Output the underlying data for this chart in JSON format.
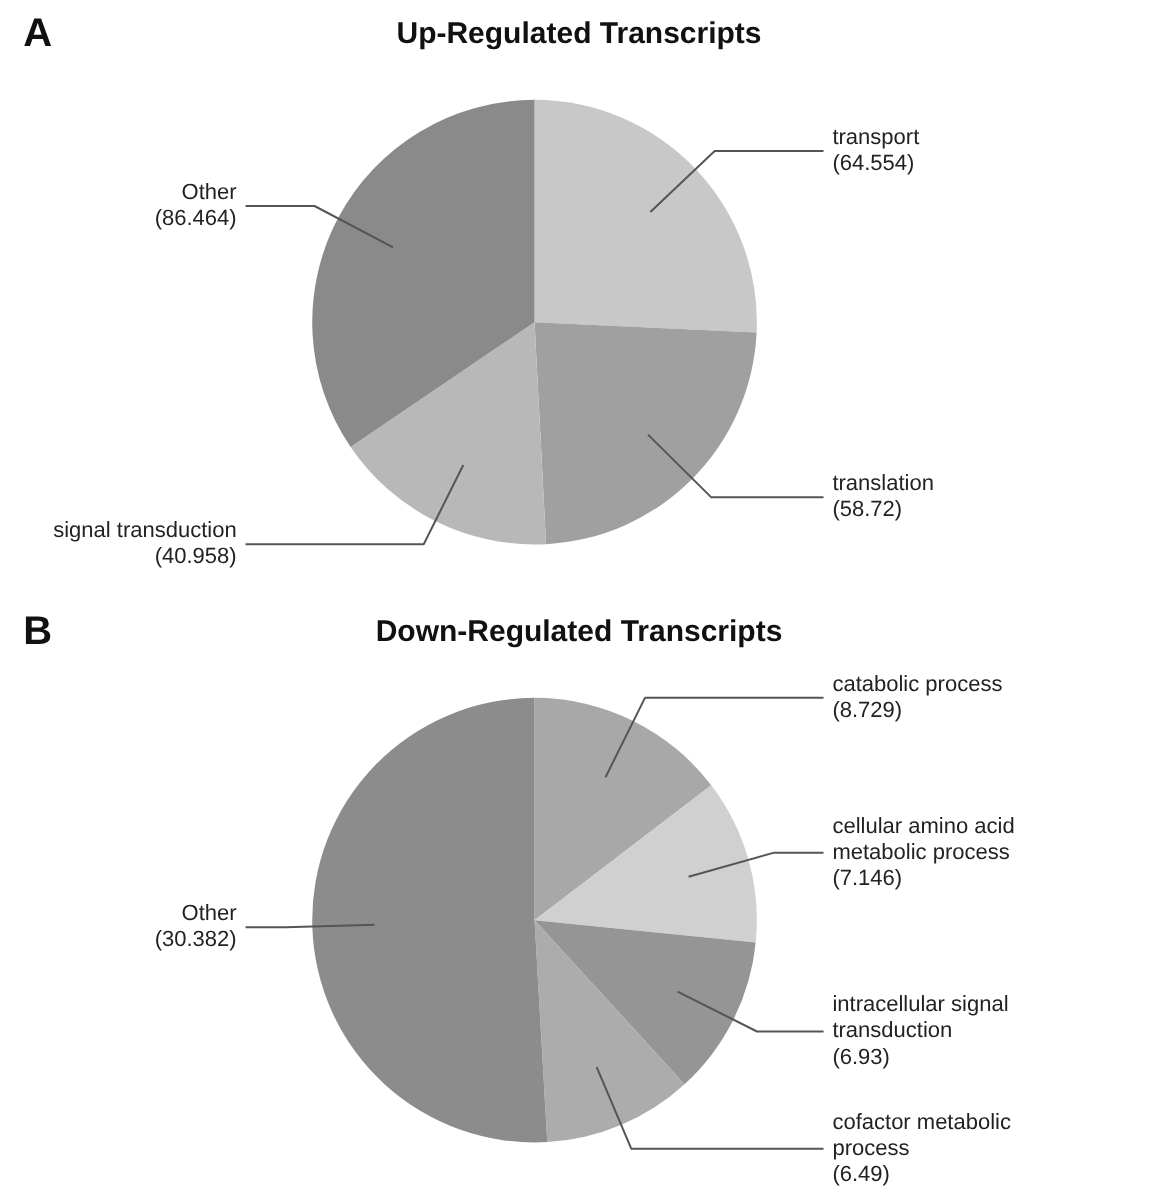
{
  "chart_data": [
    {
      "type": "pie",
      "title": "Up-Regulated Transcripts",
      "annotations": [
        "A"
      ],
      "categories": [
        "transport",
        "translation",
        "signal transduction",
        "Other"
      ],
      "values": [
        64.554,
        58.72,
        40.958,
        86.464
      ],
      "value_labels": [
        "(64.554)",
        "(58.72)",
        "(40.958)",
        "(86.464)"
      ],
      "colors": [
        "#c8c8c8",
        "#a0a0a0",
        "#b8b8b8",
        "#8a8a8a"
      ]
    },
    {
      "type": "pie",
      "title": "Down-Regulated Transcripts",
      "annotations": [
        "B"
      ],
      "categories": [
        "catabolic process",
        "cellular amino acid metabolic process",
        "intracellular signal transduction",
        "cofactor metabolic process",
        "Other"
      ],
      "values": [
        8.729,
        7.146,
        6.93,
        6.49,
        30.382
      ],
      "value_labels": [
        "(8.729)",
        "(7.146)",
        "(6.93)",
        "(6.49)",
        "(30.382)"
      ],
      "colors": [
        "#a8a8a8",
        "#d0d0d0",
        "#959595",
        "#acacac",
        "#8c8c8c"
      ]
    }
  ]
}
